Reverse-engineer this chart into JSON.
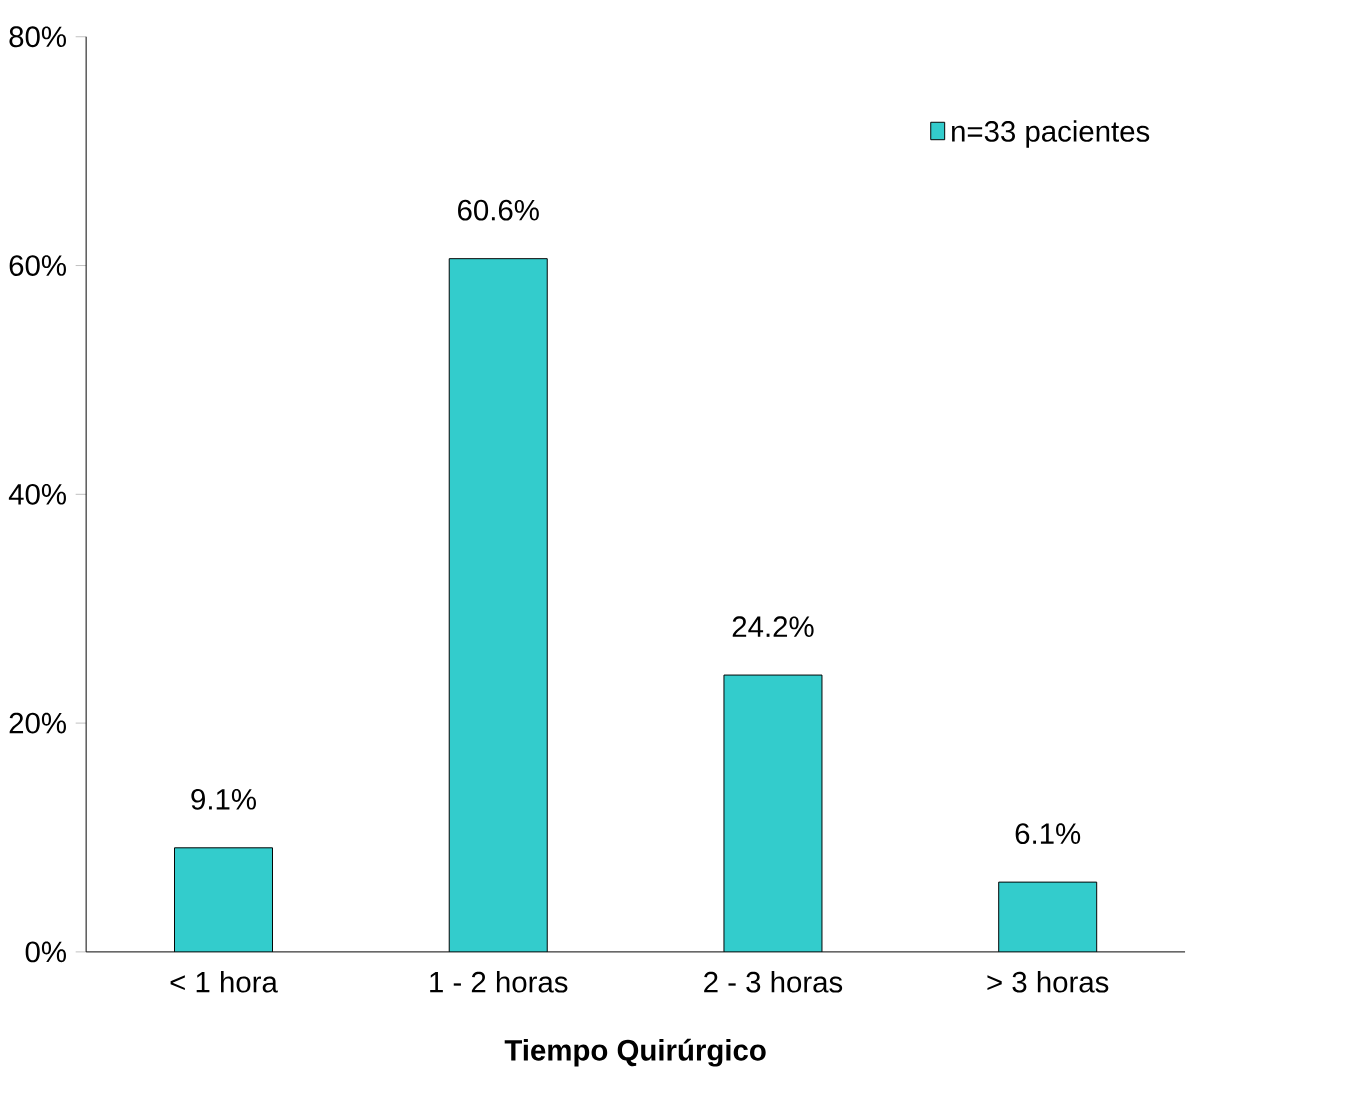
{
  "chart_data": {
    "type": "bar",
    "xlabel": "Tiempo Quirúrgico",
    "categories": [
      "< 1 hora",
      "1 - 2 horas",
      "2 - 3 horas",
      "> 3 horas"
    ],
    "series": [
      {
        "name": "n=33 pacientes",
        "color": "#33cccc",
        "values": [
          9.1,
          60.6,
          24.2,
          6.1
        ],
        "value_labels": [
          "9.1%",
          "60.6%",
          "24.2%",
          "6.1%"
        ]
      }
    ],
    "ylim": [
      0,
      80
    ],
    "yticks": [
      {
        "value": 0,
        "label": "0%"
      },
      {
        "value": 20,
        "label": "20%"
      },
      {
        "value": 40,
        "label": "40%"
      },
      {
        "value": 60,
        "label": "60%"
      },
      {
        "value": 80,
        "label": "80%"
      }
    ],
    "grid": false,
    "legend": "top right"
  }
}
